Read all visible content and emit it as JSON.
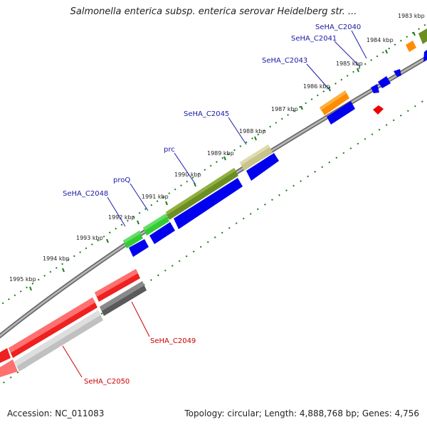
{
  "title": "Salmonella enterica subsp. enterica serovar Heidelberg str. ...",
  "footer": {
    "accession": "Accession: NC_011083",
    "summary": "Topology: circular; Length: 4,888,768 bp; Genes: 4,756"
  },
  "ticks": [
    {
      "label": "1983 kbp"
    },
    {
      "label": "1984 kbp"
    },
    {
      "label": "1985 kbp"
    },
    {
      "label": "1986 kbp"
    },
    {
      "label": "1987 kbp"
    },
    {
      "label": "1988 kbp"
    },
    {
      "label": "1989 kbp"
    },
    {
      "label": "1990 kbp"
    },
    {
      "label": "1991 kbp"
    },
    {
      "label": "1992 kbp"
    },
    {
      "label": "1993 kbp"
    },
    {
      "label": "1994 kbp"
    },
    {
      "label": "1995 kbp"
    }
  ],
  "gene_labels": [
    {
      "text": "SeHA_C2040",
      "color": "#1a1aa6"
    },
    {
      "text": "SeHA_C2041",
      "color": "#1a1aa6"
    },
    {
      "text": "SeHA_C2043",
      "color": "#1a1aa6"
    },
    {
      "text": "SeHA_C2045",
      "color": "#1a1aa6"
    },
    {
      "text": "prc",
      "color": "#1a1aa6"
    },
    {
      "text": "proQ",
      "color": "#1a1aa6"
    },
    {
      "text": "SeHA_C2048",
      "color": "#1a1aa6"
    },
    {
      "text": "SeHA_C2049",
      "color": "#cc0000"
    },
    {
      "text": "SeHA_C2050",
      "color": "#cc0000"
    }
  ],
  "colors": {
    "backbone": "#8c8c8c",
    "tick": "#1a7a1a",
    "cds_forward": "#0000ee",
    "cds_reverse": "#ee0000",
    "olive": "#6b8e23",
    "green": "#33cc33",
    "khaki": "#c8c48a",
    "orange": "#ff8c00",
    "gray": "#5a5a5a",
    "lightgray": "#c0c0c0"
  }
}
